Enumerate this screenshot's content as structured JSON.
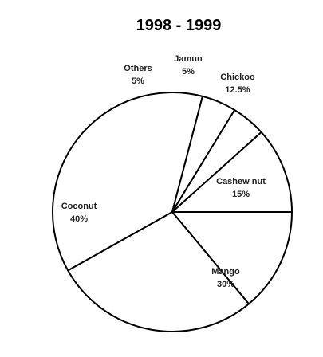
{
  "chart_data": {
    "type": "pie",
    "title": "1998 - 1999",
    "slices": [
      {
        "label": "Cashew nut",
        "value": 15,
        "value_label": "15%"
      },
      {
        "label": "Mango",
        "value": 30,
        "value_label": "30%"
      },
      {
        "label": "Coconut",
        "value": 40,
        "value_label": "40%"
      },
      {
        "label": "Others",
        "value": 5,
        "value_label": "5%"
      },
      {
        "label": "Jamun",
        "value": 5,
        "value_label": "5%"
      },
      {
        "label": "Chickoo",
        "value": 12.5,
        "value_label": "12.5%"
      }
    ],
    "fill_color": "#ffffff",
    "stroke_color": "#000000",
    "legend": "none",
    "labels": "inside-or-outside-slices"
  }
}
